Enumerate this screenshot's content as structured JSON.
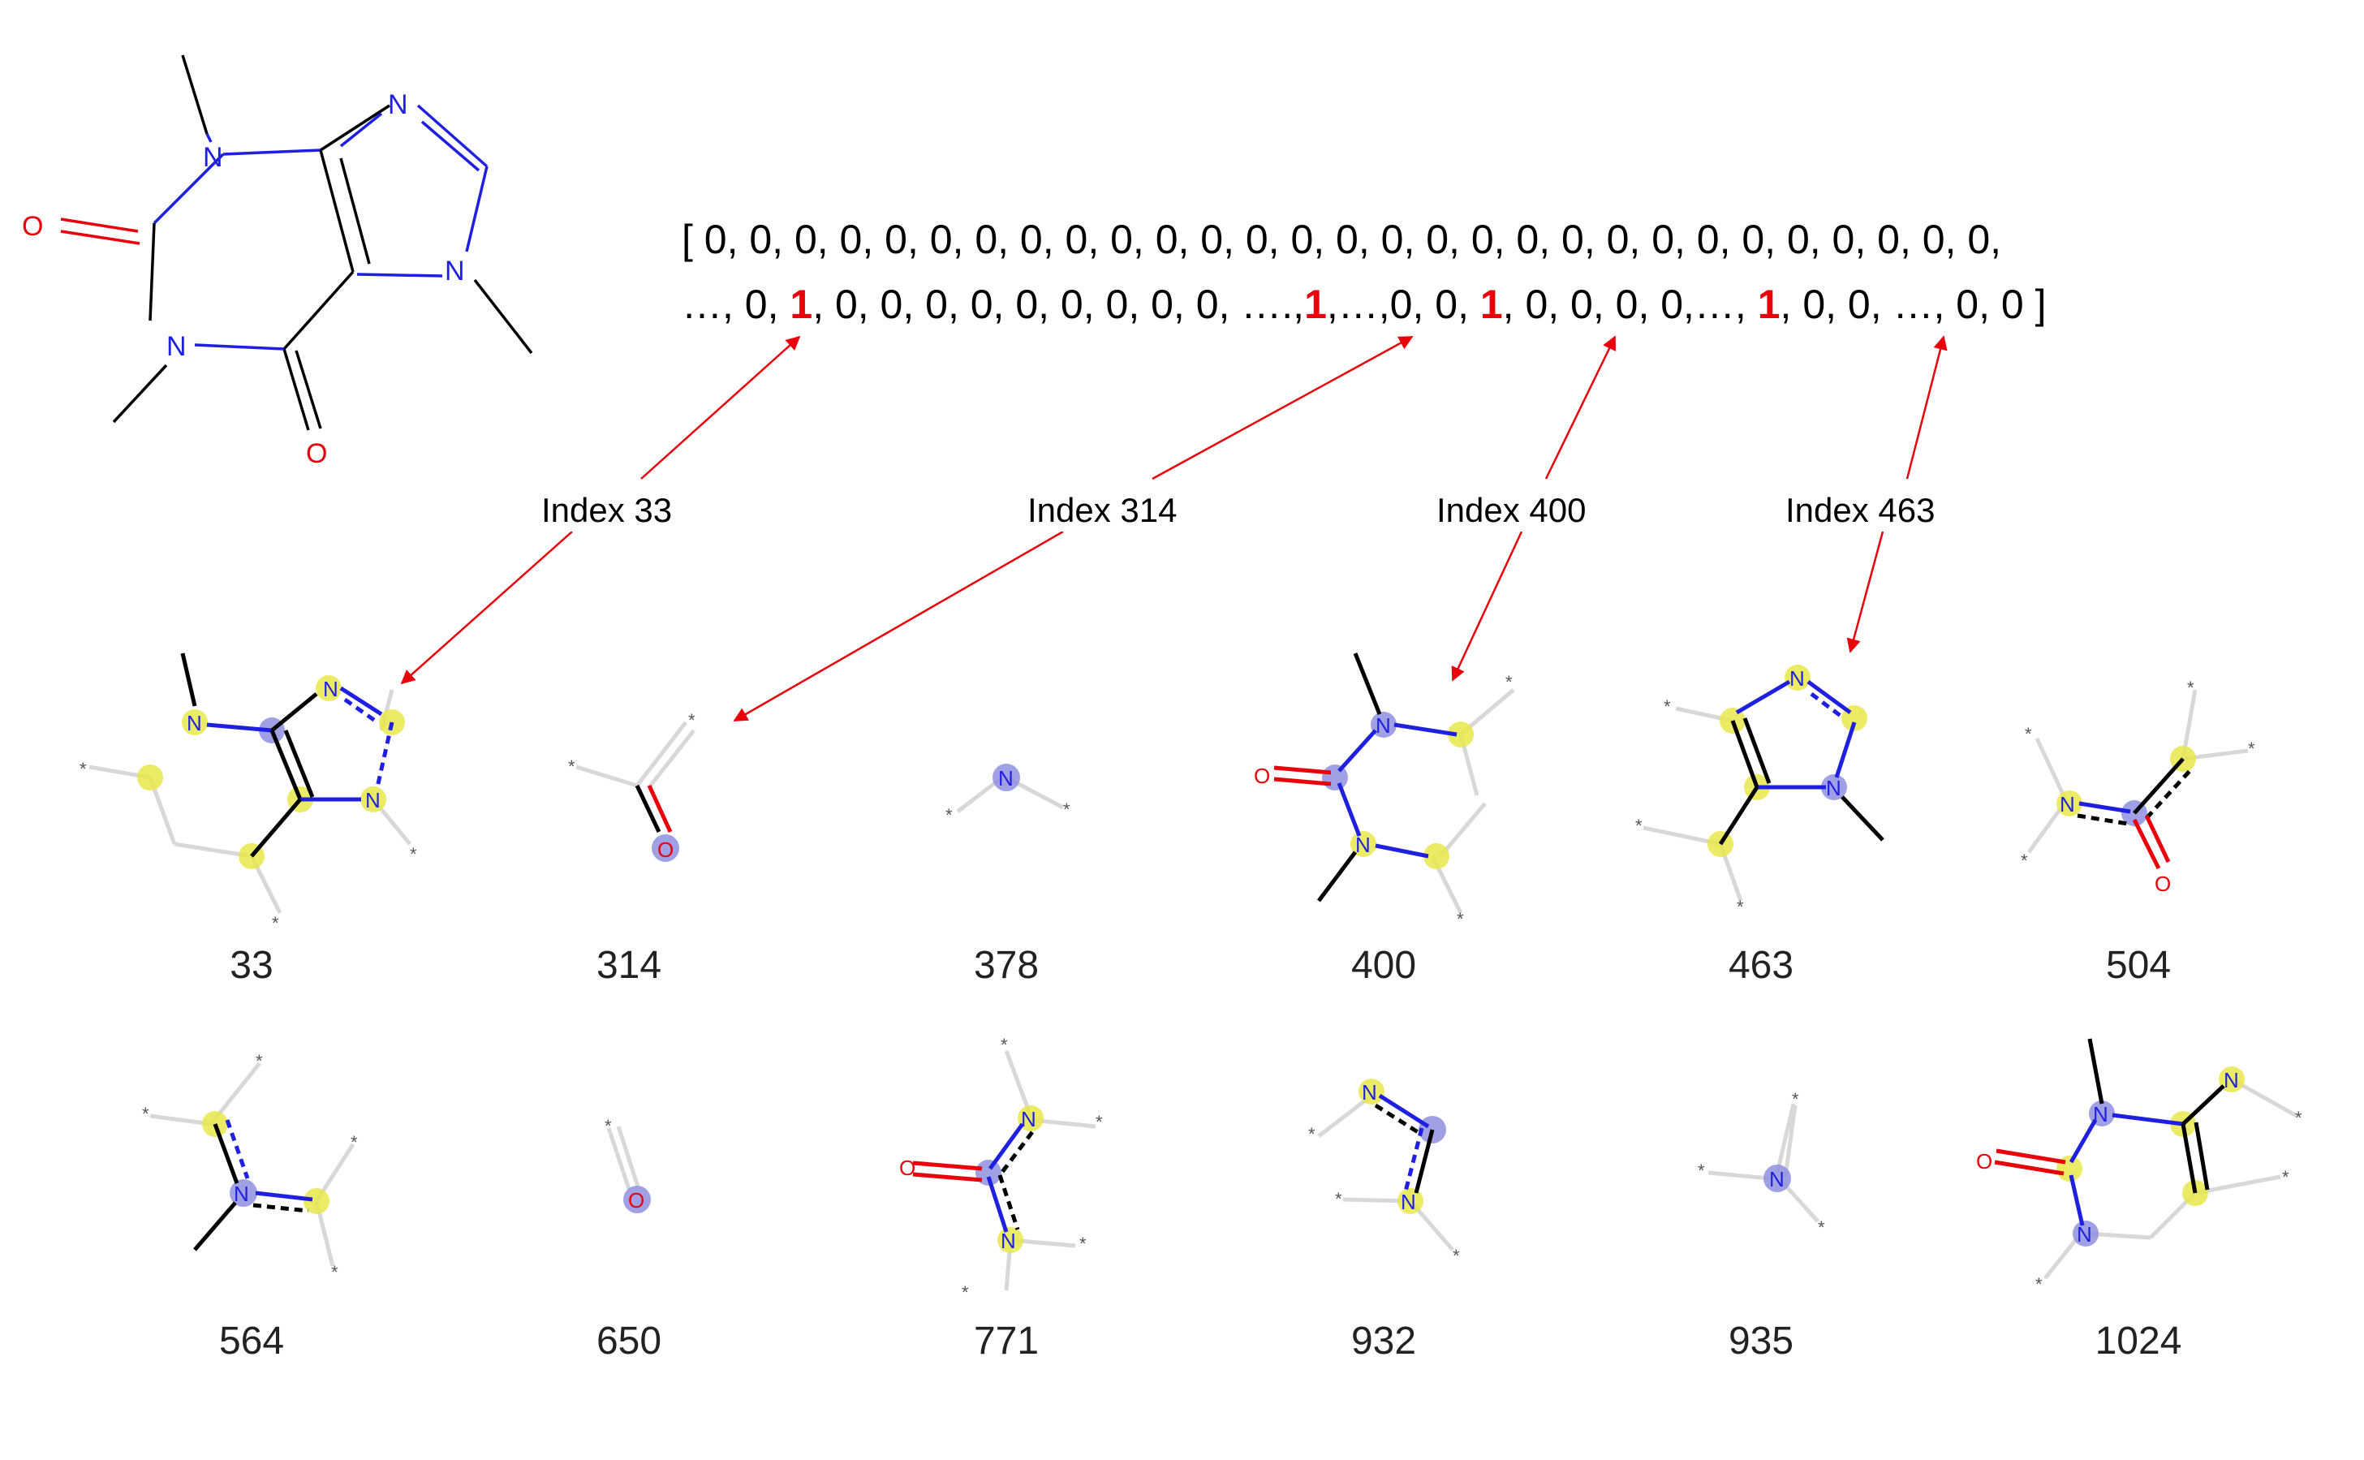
{
  "fingerprint": {
    "line1": "[ 0, 0, 0, 0, 0, 0, 0, 0, 0, 0, 0, 0, 0, 0, 0, 0, 0, 0, 0, 0, 0, 0, 0, 0, 0, 0, 0, 0, 0,",
    "seg_a": "…, 0, ",
    "seg_b": ", 0, 0, 0, 0, 0, 0, 0, 0, 0, ….,",
    "seg_c": ",…,0, 0, ",
    "seg_d": ", 0, 0, 0, 0,…, ",
    "seg_e": ", 0, 0, …, 0, 0 ]",
    "set_bit": "1"
  },
  "index_labels": [
    "Index 33",
    "Index 314",
    "Index 400",
    "Index 463"
  ],
  "fragments": {
    "row1": [
      "33",
      "314",
      "378",
      "400",
      "463",
      "504"
    ],
    "row2": [
      "564",
      "650",
      "771",
      "932",
      "935",
      "1024"
    ]
  },
  "atoms": {
    "N": "N",
    "O": "O",
    "star": "*"
  },
  "colors": {
    "arrow": "#e8000b",
    "nitrogen": "#1f1fe0",
    "oxygen": "#e8000b",
    "highlight_yellow": "#e8e84a",
    "highlight_blue": "#8f8fe0"
  }
}
